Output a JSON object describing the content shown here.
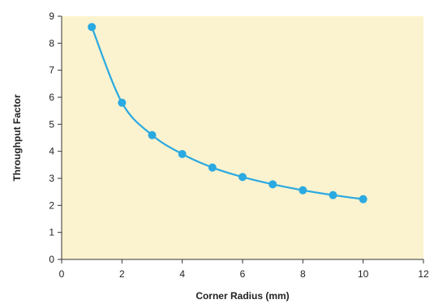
{
  "chart_data": {
    "type": "line",
    "title": "",
    "xlabel": "Corner Radius (mm)",
    "ylabel": "Throughput Factor",
    "xlim": [
      0,
      12
    ],
    "ylim": [
      0,
      9
    ],
    "xticks": [
      0,
      2,
      4,
      6,
      8,
      10,
      12
    ],
    "yticks": [
      0,
      1,
      2,
      3,
      4,
      5,
      6,
      7,
      8,
      9
    ],
    "grid": false,
    "legend": "none",
    "background_color": "#FBF3CF",
    "series": [
      {
        "color": "#2BA9E1",
        "marker": "circle",
        "smooth": true,
        "x": [
          1,
          2,
          3,
          4,
          5,
          6,
          7,
          8,
          9,
          10
        ],
        "y": [
          8.6,
          5.8,
          4.6,
          3.9,
          3.4,
          3.05,
          2.78,
          2.56,
          2.38,
          2.23
        ]
      }
    ]
  }
}
